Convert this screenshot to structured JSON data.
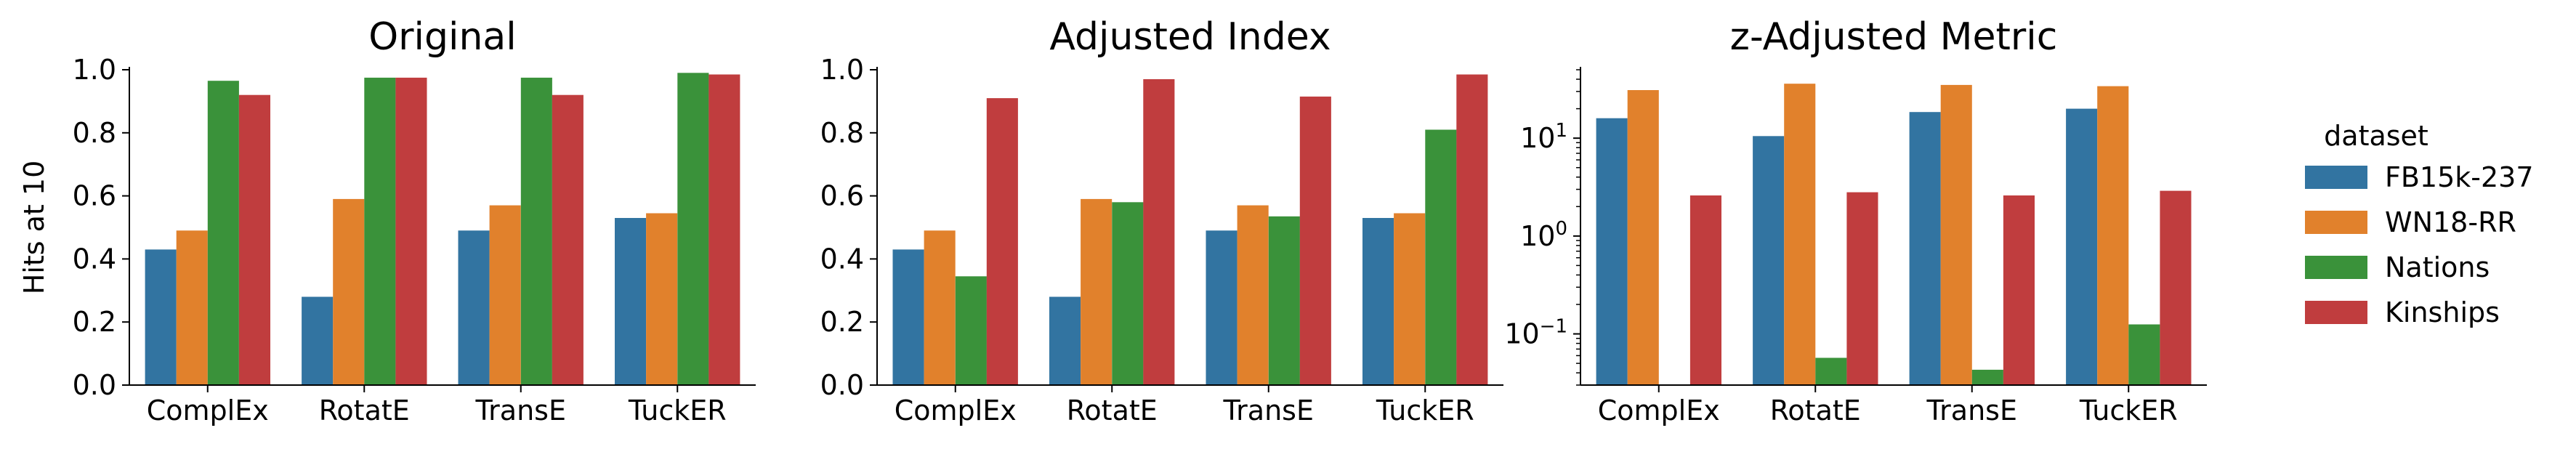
{
  "legend": {
    "title": "dataset",
    "placement": "right",
    "entries": [
      "FB15k-237",
      "WN18-RR",
      "Nations",
      "Kinships"
    ]
  },
  "colors": {
    "FB15k-237": "#3274a1",
    "WN18-RR": "#e1812c",
    "Nations": "#3a923a",
    "Kinships": "#c03d3e"
  },
  "chart_data": [
    {
      "type": "bar",
      "title": "Original",
      "ylabel": "Hits at 10",
      "xlabel": "",
      "yscale": "linear",
      "ylim": [
        0,
        1.0
      ],
      "yticks": [
        0.0,
        0.2,
        0.4,
        0.6,
        0.8,
        1.0
      ],
      "ytick_labels": [
        "0.0",
        "0.2",
        "0.4",
        "0.6",
        "0.8",
        "1.0"
      ],
      "grid": false,
      "categories": [
        "ComplEx",
        "RotatE",
        "TransE",
        "TuckER"
      ],
      "series": [
        {
          "name": "FB15k-237",
          "values": [
            0.43,
            0.28,
            0.49,
            0.53
          ]
        },
        {
          "name": "WN18-RR",
          "values": [
            0.49,
            0.59,
            0.57,
            0.545
          ]
        },
        {
          "name": "Nations",
          "values": [
            0.965,
            0.975,
            0.975,
            0.99
          ]
        },
        {
          "name": "Kinships",
          "values": [
            0.92,
            0.975,
            0.92,
            0.985
          ]
        }
      ]
    },
    {
      "type": "bar",
      "title": "Adjusted Index",
      "ylabel": "",
      "xlabel": "",
      "yscale": "linear",
      "ylim": [
        0,
        1.0
      ],
      "yticks": [
        0.0,
        0.2,
        0.4,
        0.6,
        0.8,
        1.0
      ],
      "ytick_labels": [
        "0.0",
        "0.2",
        "0.4",
        "0.6",
        "0.8",
        "1.0"
      ],
      "grid": false,
      "categories": [
        "ComplEx",
        "RotatE",
        "TransE",
        "TuckER"
      ],
      "series": [
        {
          "name": "FB15k-237",
          "values": [
            0.43,
            0.28,
            0.49,
            0.53
          ]
        },
        {
          "name": "WN18-RR",
          "values": [
            0.49,
            0.59,
            0.57,
            0.545
          ]
        },
        {
          "name": "Nations",
          "values": [
            0.345,
            0.58,
            0.535,
            0.81
          ]
        },
        {
          "name": "Kinships",
          "values": [
            0.91,
            0.97,
            0.915,
            0.985
          ]
        }
      ]
    },
    {
      "type": "bar",
      "title": "z-Adjusted Metric",
      "ylabel": "",
      "xlabel": "",
      "yscale": "log",
      "ylim": [
        0.03,
        50
      ],
      "yticks": [
        0.1,
        1,
        10
      ],
      "ytick_labels": [
        {
          "base": "10",
          "exp": "−1"
        },
        {
          "base": "10",
          "exp": "0"
        },
        {
          "base": "10",
          "exp": "1"
        }
      ],
      "grid": false,
      "categories": [
        "ComplEx",
        "RotatE",
        "TransE",
        "TuckER"
      ],
      "series": [
        {
          "name": "FB15k-237",
          "values": [
            16,
            10.5,
            18.5,
            20
          ]
        },
        {
          "name": "WN18-RR",
          "values": [
            31,
            36,
            35,
            34
          ]
        },
        {
          "name": "Nations",
          "values": [
            null,
            0.057,
            0.043,
            0.125
          ]
        },
        {
          "name": "Kinships",
          "values": [
            2.6,
            2.8,
            2.6,
            2.9
          ]
        }
      ]
    }
  ]
}
